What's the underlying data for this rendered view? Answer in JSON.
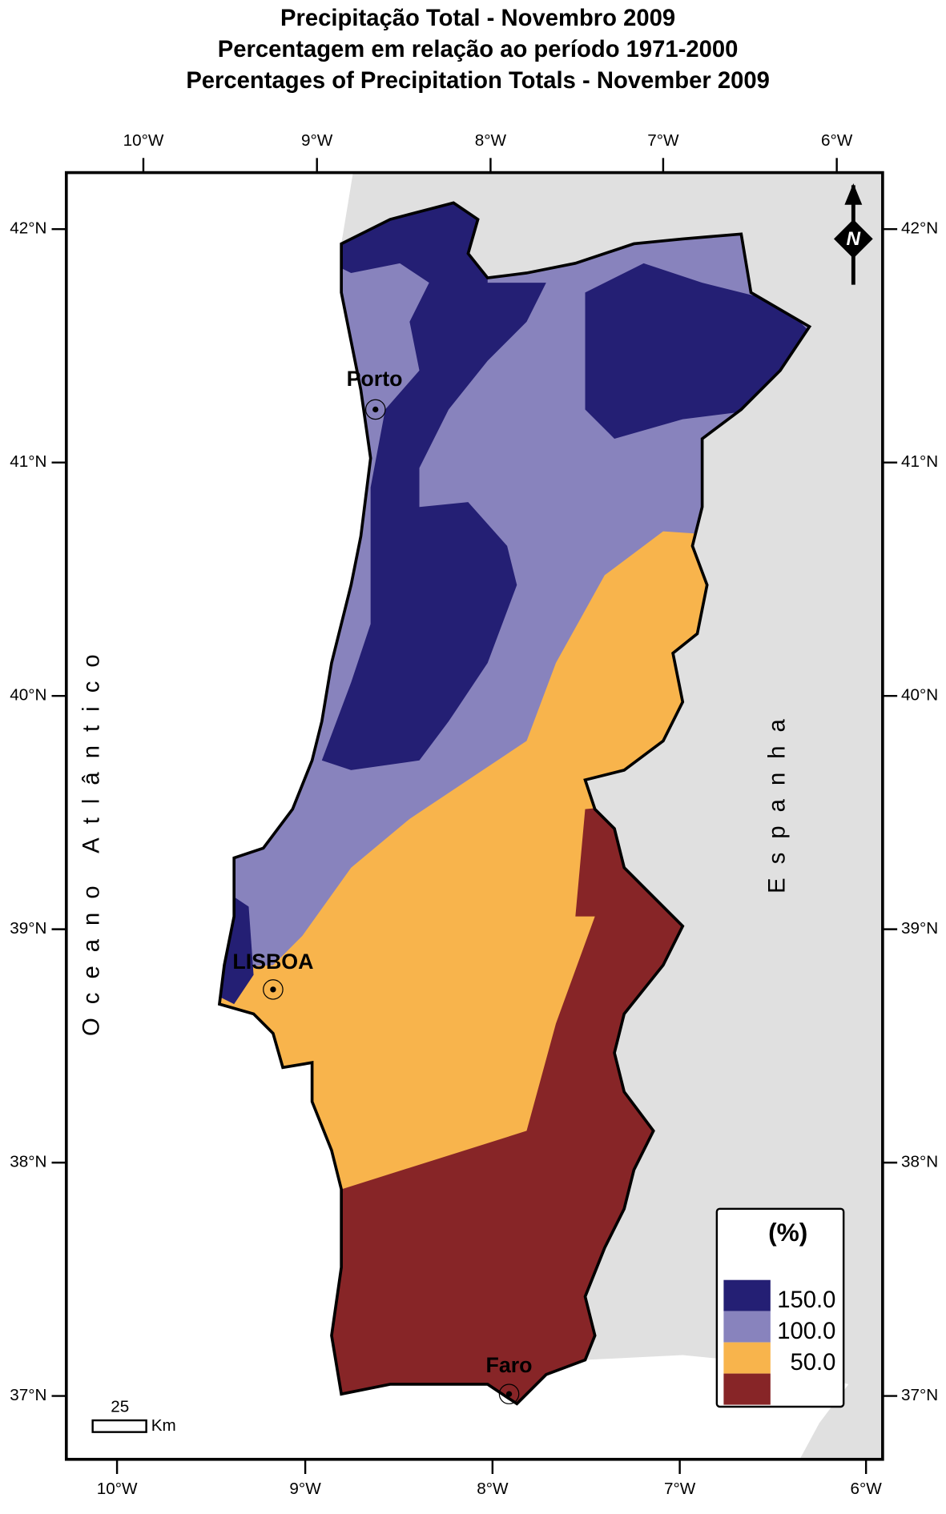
{
  "header": {
    "title": [
      "Precipitação Total  - Novembro 2009",
      "Percentagem em relação ao período 1971-2000",
      "Percentages of Precipitation Totals -  November 2009"
    ]
  },
  "map": {
    "top_ticks": [
      "10°W",
      "9°W",
      "8°W",
      "7°W",
      "6°W"
    ],
    "bottom_ticks": [
      "10°W",
      "9°W",
      "8°W",
      "7°W",
      "6°W"
    ],
    "lat_ticks": [
      "42°N",
      "41°N",
      "40°N",
      "39°N",
      "38°N",
      "37°N"
    ],
    "regions": {
      "ocean": "Oceano Atlântico",
      "spain": "Espanha"
    },
    "cities": [
      "Porto",
      "LISBOA",
      "Faro"
    ],
    "north_arrow": "N",
    "scale": {
      "value": "25",
      "unit": "Km"
    }
  },
  "legend": {
    "title": "(%)",
    "labels": [
      "150.0",
      "100.0",
      "50.0"
    ],
    "colors": [
      "#241f74",
      "#8883bd",
      "#f8b44c",
      "#872527"
    ]
  }
}
